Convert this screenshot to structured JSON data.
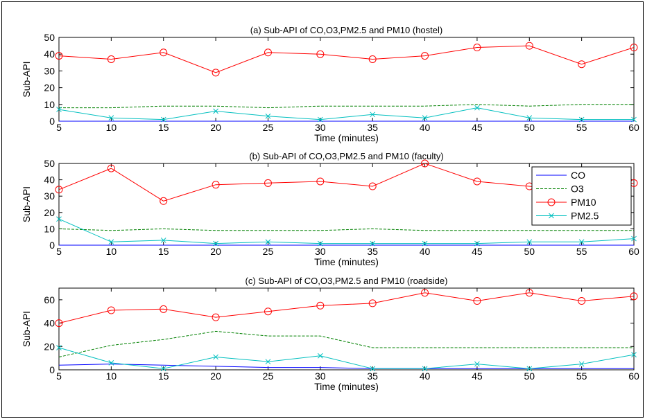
{
  "chart_data": [
    {
      "type": "line",
      "title": "(a) Sub-API of CO,O3,PM2.5 and PM10 (hostel)",
      "xlabel": "Time (minutes)",
      "ylabel": "Sub-API",
      "xlim": [
        5,
        60
      ],
      "ylim": [
        0,
        50
      ],
      "xticks": [
        5,
        10,
        15,
        20,
        25,
        30,
        35,
        40,
        45,
        50,
        55,
        60
      ],
      "yticks": [
        0,
        10,
        20,
        30,
        40,
        50
      ],
      "x": [
        5,
        10,
        15,
        20,
        25,
        30,
        35,
        40,
        45,
        50,
        55,
        60
      ],
      "grid": false,
      "legend": null,
      "series": [
        {
          "name": "CO",
          "color": "#0000ff",
          "dash": "solid",
          "marker": "none",
          "values": [
            0,
            0,
            0,
            0,
            0,
            0,
            0,
            0,
            0,
            0,
            0,
            0
          ]
        },
        {
          "name": "O3",
          "color": "#008000",
          "dash": "dashed",
          "marker": "none",
          "values": [
            8,
            8,
            9,
            9,
            8,
            9,
            9,
            9,
            10,
            9,
            10,
            10
          ]
        },
        {
          "name": "PM10",
          "color": "#ff0000",
          "dash": "solid",
          "marker": "circle",
          "values": [
            39,
            37,
            41,
            29,
            41,
            40,
            37,
            39,
            44,
            45,
            34,
            44
          ]
        },
        {
          "name": "PM2.5",
          "color": "#00bfbf",
          "dash": "solid",
          "marker": "x",
          "values": [
            7,
            2,
            1,
            6,
            3,
            1,
            4,
            2,
            8,
            2,
            1,
            1
          ]
        }
      ]
    },
    {
      "type": "line",
      "title": "(b) Sub-API of CO,O3,PM2.5 and PM10 (faculty)",
      "xlabel": "Time (minutes)",
      "ylabel": "Sub-API",
      "xlim": [
        5,
        60
      ],
      "ylim": [
        0,
        50
      ],
      "xticks": [
        5,
        10,
        15,
        20,
        25,
        30,
        35,
        40,
        45,
        50,
        55,
        60
      ],
      "yticks": [
        0,
        10,
        20,
        30,
        40,
        50
      ],
      "x": [
        5,
        10,
        15,
        20,
        25,
        30,
        35,
        40,
        45,
        50,
        55,
        60
      ],
      "grid": false,
      "legend": "top-right",
      "series": [
        {
          "name": "CO",
          "color": "#0000ff",
          "dash": "solid",
          "marker": "none",
          "values": [
            0,
            0,
            0,
            0,
            0,
            0,
            0,
            0,
            0,
            0,
            0,
            0
          ]
        },
        {
          "name": "O3",
          "color": "#008000",
          "dash": "dashed",
          "marker": "none",
          "values": [
            10,
            9,
            10,
            9,
            9,
            9,
            10,
            9,
            9,
            9,
            9,
            9
          ]
        },
        {
          "name": "PM10",
          "color": "#ff0000",
          "dash": "solid",
          "marker": "circle",
          "values": [
            34,
            47,
            27,
            37,
            38,
            39,
            36,
            50,
            39,
            36,
            33,
            38
          ]
        },
        {
          "name": "PM2.5",
          "color": "#00bfbf",
          "dash": "solid",
          "marker": "x",
          "values": [
            16,
            2,
            3,
            1,
            2,
            1,
            1,
            1,
            1,
            2,
            2,
            4
          ]
        }
      ]
    },
    {
      "type": "line",
      "title": "(c) Sub-API of CO,O3,PM2.5 and PM10 (roadside)",
      "xlabel": "Time (minutes)",
      "ylabel": "Sub-API",
      "xlim": [
        5,
        60
      ],
      "ylim": [
        0,
        70
      ],
      "xticks": [
        5,
        10,
        15,
        20,
        25,
        30,
        35,
        40,
        45,
        50,
        55,
        60
      ],
      "yticks": [
        0,
        20,
        40,
        60
      ],
      "x": [
        5,
        10,
        15,
        20,
        25,
        30,
        35,
        40,
        45,
        50,
        55,
        60
      ],
      "grid": false,
      "legend": null,
      "series": [
        {
          "name": "CO",
          "color": "#0000ff",
          "dash": "solid",
          "marker": "none",
          "values": [
            4,
            5,
            4,
            3,
            2,
            2,
            1,
            1,
            1,
            1,
            1,
            1
          ]
        },
        {
          "name": "O3",
          "color": "#008000",
          "dash": "dashed",
          "marker": "none",
          "values": [
            11,
            21,
            26,
            33,
            29,
            29,
            19,
            19,
            19,
            19,
            19,
            19
          ]
        },
        {
          "name": "PM10",
          "color": "#ff0000",
          "dash": "solid",
          "marker": "circle",
          "values": [
            40,
            51,
            52,
            45,
            50,
            55,
            57,
            66,
            59,
            66,
            59,
            63
          ]
        },
        {
          "name": "PM2.5",
          "color": "#00bfbf",
          "dash": "solid",
          "marker": "x",
          "values": [
            19,
            6,
            1,
            11,
            7,
            12,
            1,
            1,
            5,
            1,
            5,
            13
          ]
        }
      ]
    }
  ]
}
